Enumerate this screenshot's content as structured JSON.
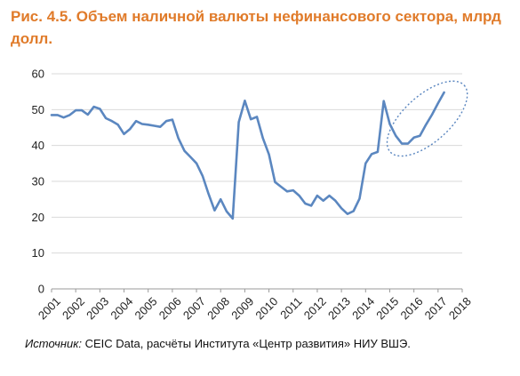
{
  "title": "Рис. 4.5. Объем наличной валюты нефинансового сектора, млрд долл.",
  "source": {
    "label": "Источник:",
    "text": " CEIC Data, расчёты Института «Центр развития» НИУ ВШЭ."
  },
  "chart_data": {
    "type": "line",
    "title": "Рис. 4.5. Объем наличной валюты нефинансового сектора, млрд долл.",
    "xlabel": "",
    "ylabel": "",
    "xlim": [
      2001,
      2018
    ],
    "ylim": [
      0,
      60
    ],
    "yticks": [
      0,
      10,
      20,
      30,
      40,
      50,
      60
    ],
    "xticks": [
      "2001",
      "2002",
      "2003",
      "2004",
      "2005",
      "2006",
      "2007",
      "2008",
      "2009",
      "2010",
      "2011",
      "2012",
      "2013",
      "2014",
      "2015",
      "2016",
      "2017",
      "2018"
    ],
    "grid": "horizontal",
    "line_color": "#5b87c0",
    "annotation": "dotted ellipse around 2016–2017 rise",
    "series": [
      {
        "points": [
          [
            2001.0,
            48.5
          ],
          [
            2001.25,
            48.5
          ],
          [
            2001.5,
            47.8
          ],
          [
            2001.75,
            48.5
          ],
          [
            2002.0,
            49.8
          ],
          [
            2002.25,
            49.8
          ],
          [
            2002.5,
            48.6
          ],
          [
            2002.75,
            50.8
          ],
          [
            2003.0,
            50.2
          ],
          [
            2003.25,
            47.6
          ],
          [
            2003.5,
            46.8
          ],
          [
            2003.75,
            45.8
          ],
          [
            2004.0,
            43.2
          ],
          [
            2004.25,
            44.6
          ],
          [
            2004.5,
            46.8
          ],
          [
            2004.75,
            46.0
          ],
          [
            2005.0,
            45.8
          ],
          [
            2005.25,
            45.5
          ],
          [
            2005.5,
            45.2
          ],
          [
            2005.75,
            46.8
          ],
          [
            2006.0,
            47.2
          ],
          [
            2006.25,
            42.0
          ],
          [
            2006.5,
            38.5
          ],
          [
            2006.75,
            36.8
          ],
          [
            2007.0,
            35.0
          ],
          [
            2007.25,
            31.5
          ],
          [
            2007.5,
            26.5
          ],
          [
            2007.75,
            21.9
          ],
          [
            2008.0,
            25.0
          ],
          [
            2008.25,
            21.6
          ],
          [
            2008.5,
            19.6
          ],
          [
            2008.75,
            46.5
          ],
          [
            2009.0,
            52.5
          ],
          [
            2009.25,
            47.3
          ],
          [
            2009.5,
            48.0
          ],
          [
            2009.75,
            42.0
          ],
          [
            2010.0,
            37.5
          ],
          [
            2010.25,
            29.8
          ],
          [
            2010.5,
            28.5
          ],
          [
            2010.75,
            27.2
          ],
          [
            2011.0,
            27.5
          ],
          [
            2011.25,
            26.0
          ],
          [
            2011.5,
            23.8
          ],
          [
            2011.75,
            23.2
          ],
          [
            2012.0,
            26.0
          ],
          [
            2012.25,
            24.6
          ],
          [
            2012.5,
            26.0
          ],
          [
            2012.75,
            24.6
          ],
          [
            2013.0,
            22.5
          ],
          [
            2013.25,
            20.9
          ],
          [
            2013.5,
            21.7
          ],
          [
            2013.75,
            25.2
          ],
          [
            2014.0,
            35.0
          ],
          [
            2014.25,
            37.6
          ],
          [
            2014.5,
            38.2
          ],
          [
            2014.75,
            52.4
          ],
          [
            2015.0,
            46.0
          ],
          [
            2015.25,
            42.7
          ],
          [
            2015.5,
            40.5
          ],
          [
            2015.75,
            40.5
          ],
          [
            2016.0,
            42.2
          ],
          [
            2016.25,
            42.7
          ],
          [
            2016.5,
            45.8
          ],
          [
            2016.75,
            48.6
          ],
          [
            2017.0,
            51.8
          ],
          [
            2017.25,
            54.8
          ]
        ]
      }
    ]
  }
}
